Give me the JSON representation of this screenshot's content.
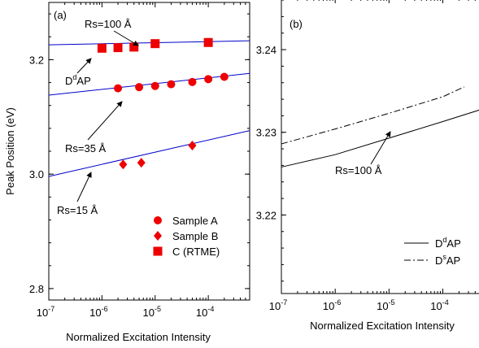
{
  "chart_data": [
    {
      "panel_label": "(a)",
      "type": "scatter",
      "xlabel": "Normalized Excitation Intensity",
      "ylabel": "Peak Position (eV)",
      "x_scale": "log",
      "xlim": [
        1e-07,
        0.0006
      ],
      "ylim": [
        2.78,
        3.3
      ],
      "x_ticks": [
        1e-07,
        1e-06,
        1e-05,
        0.0001
      ],
      "x_tick_labels": [
        {
          "base": "10",
          "exp": "-7"
        },
        {
          "base": "10",
          "exp": "-6"
        },
        {
          "base": "10",
          "exp": "-5"
        },
        {
          "base": "10",
          "exp": "-4"
        }
      ],
      "y_ticks": [
        2.8,
        3.0,
        3.2
      ],
      "y_tick_labels": [
        "2.8",
        "3.0",
        "3.2"
      ],
      "lines": [
        {
          "label": "Rs=100 Å",
          "color": "#0000cc",
          "x": [
            1e-07,
            0.0006
          ],
          "y": [
            3.226,
            3.233
          ]
        },
        {
          "label": "Rs=35 Å",
          "color": "#0000cc",
          "x": [
            1e-07,
            0.0006
          ],
          "y": [
            3.138,
            3.176
          ]
        },
        {
          "label": "Rs=15 Å",
          "color": "#0000cc",
          "x": [
            1e-07,
            0.0006
          ],
          "y": [
            2.996,
            3.076
          ]
        }
      ],
      "series": [
        {
          "name": "Sample A",
          "marker": "circle",
          "color": "#ee0000",
          "x": [
            2e-06,
            5e-06,
            1e-05,
            2e-05,
            5e-05,
            0.0001,
            0.0002
          ],
          "y": [
            3.15,
            3.152,
            3.154,
            3.157,
            3.161,
            3.166,
            3.17
          ]
        },
        {
          "name": "Sample B",
          "marker": "diamond",
          "color": "#ee0000",
          "x": [
            2.5e-06,
            5.5e-06,
            5e-05
          ],
          "y": [
            3.017,
            3.02,
            3.05
          ]
        },
        {
          "name": "C (RTME)",
          "marker": "square",
          "color": "#ee0000",
          "x": [
            1e-06,
            2e-06,
            4e-06,
            1e-05,
            0.0001
          ],
          "y": [
            3.22,
            3.221,
            3.222,
            3.228,
            3.23
          ]
        }
      ],
      "annotations": [
        {
          "text": "Rs=100 Å",
          "target_x": 1e-05,
          "target_y": 3.226
        },
        {
          "text_main": "D",
          "text_sup": "d",
          "text_tail": "AP",
          "target_x": 1e-06,
          "target_y": 3.22
        },
        {
          "text": "Rs=35 Å",
          "target_x": 2e-06,
          "target_y": 3.148
        },
        {
          "text": "Rs=15 Å",
          "target_x": 4e-07,
          "target_y": 3.002
        }
      ],
      "legend_placement": "bottom-right"
    },
    {
      "panel_label": "(b)",
      "type": "line",
      "xlabel": "Normalized Excitation Intensity",
      "ylabel": "",
      "x_scale": "log",
      "xlim": [
        1e-07,
        0.0006
      ],
      "ylim": [
        3.2105,
        3.2462
      ],
      "x_ticks": [
        1e-07,
        1e-06,
        1e-05,
        0.0001
      ],
      "x_tick_labels": [
        {
          "base": "10",
          "exp": "-7"
        },
        {
          "base": "10",
          "exp": "-6"
        },
        {
          "base": "10",
          "exp": "-5"
        },
        {
          "base": "10",
          "exp": "-4"
        }
      ],
      "y_ticks": [
        3.22,
        3.23,
        3.24
      ],
      "y_tick_labels": [
        "3.22",
        "3.23",
        "3.24"
      ],
      "series": [
        {
          "name_main": "D",
          "name_sup": "d",
          "name_tail": "AP",
          "style": "solid",
          "x": [
            1e-07,
            1e-06,
            1e-05,
            0.0001,
            0.0006
          ],
          "y": [
            3.2258,
            3.2273,
            3.2293,
            3.2313,
            3.2329
          ]
        },
        {
          "name_main": "D",
          "name_sup": "s",
          "name_tail": "AP",
          "style": "dashdot",
          "x": [
            1e-07,
            1e-06,
            1e-05,
            0.0001,
            0.00025
          ],
          "y": [
            3.2286,
            3.2304,
            3.2323,
            3.2343,
            3.2355
          ]
        }
      ],
      "annotations": [
        {
          "text": "Rs=100 Å",
          "target_x": 1e-05,
          "target_y": 3.2288
        }
      ],
      "legend_placement": "bottom-right"
    }
  ]
}
